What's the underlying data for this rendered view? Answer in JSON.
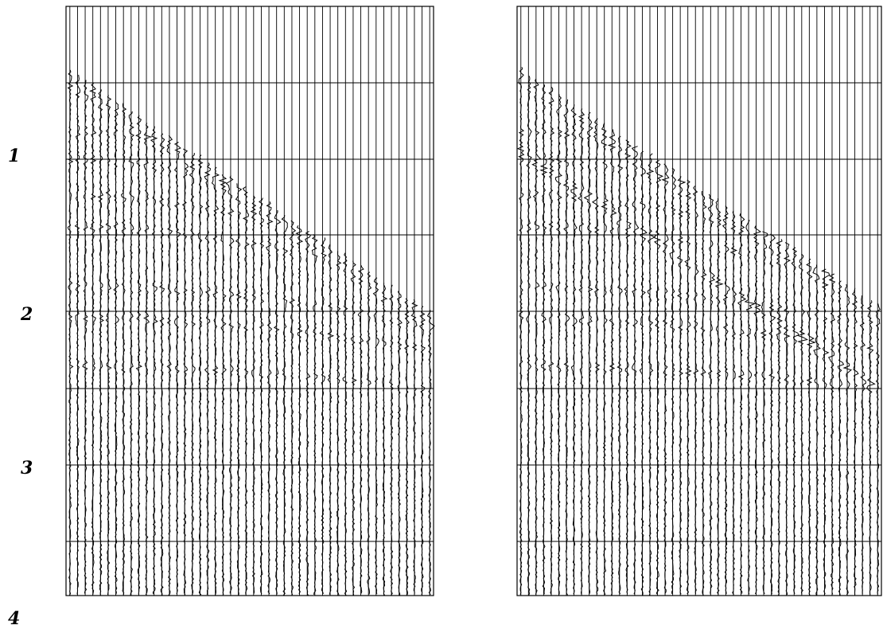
{
  "time_labels": [
    "1",
    "2",
    "3",
    "4"
  ]
}
